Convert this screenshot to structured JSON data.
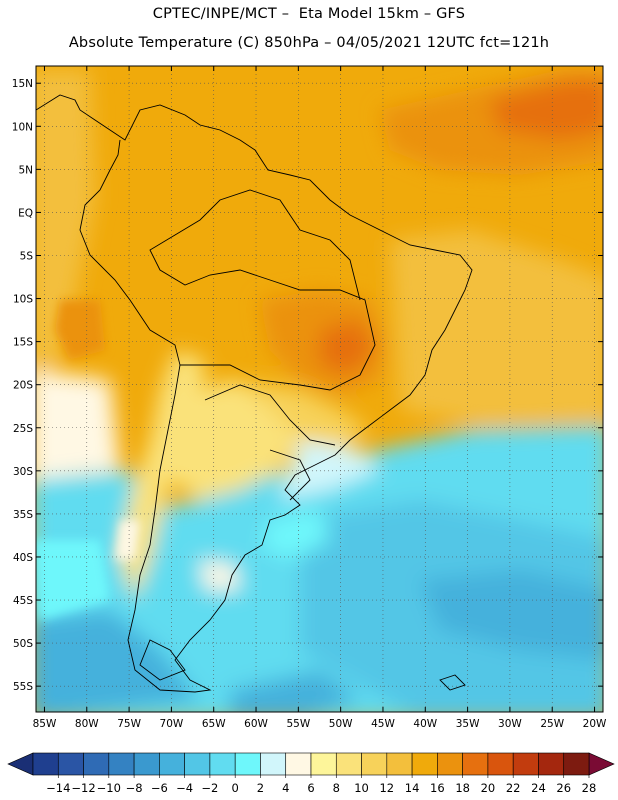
{
  "header": {
    "line1": "CPTEC/INPE/MCT –  Eta Model 15km – GFS",
    "line2": "Absolute Temperature (C) 850hPa – 04/05/2021 12UTC fct=121h"
  },
  "axes": {
    "lat_labels": [
      "15N",
      "10N",
      "5N",
      "EQ",
      "5S",
      "10S",
      "15S",
      "20S",
      "25S",
      "30S",
      "35S",
      "40S",
      "45S",
      "50S",
      "55S"
    ],
    "lat_values": [
      15,
      10,
      5,
      0,
      -5,
      -10,
      -15,
      -20,
      -25,
      -30,
      -35,
      -40,
      -45,
      -50,
      -55
    ],
    "lon_labels": [
      "85W",
      "80W",
      "75W",
      "70W",
      "65W",
      "60W",
      "55W",
      "50W",
      "45W",
      "40W",
      "35W",
      "30W",
      "25W",
      "20W"
    ],
    "lon_values": [
      -85,
      -80,
      -75,
      -70,
      -65,
      -60,
      -55,
      -50,
      -45,
      -40,
      -35,
      -30,
      -25,
      -20
    ],
    "lon_range": [
      -86,
      -19
    ],
    "lat_range": [
      -58,
      17
    ],
    "grid": "dotted"
  },
  "colorbar": {
    "labels": [
      "-14",
      "-12",
      "-10",
      "-8",
      "-6",
      "-4",
      "-2",
      "0",
      "2",
      "4",
      "6",
      "8",
      "10",
      "12",
      "14",
      "16",
      "18",
      "20",
      "22",
      "24",
      "26",
      "28"
    ],
    "colors": [
      "#1f3f8f",
      "#2a55a5",
      "#2f6bb5",
      "#3482c2",
      "#3a99cf",
      "#45b1dc",
      "#52c6e6",
      "#61dcf0",
      "#6ef7fb",
      "#d1f6fb",
      "#fff8e4",
      "#fdf59a",
      "#fae27a",
      "#f7d25a",
      "#f3bf3c",
      "#f0aa0b",
      "#eb920e",
      "#e6700f",
      "#d9550d",
      "#c23c0e",
      "#a4270e",
      "#7d1b10"
    ],
    "min_color": "#1a2f75",
    "max_color": "#7a0b34"
  }
}
